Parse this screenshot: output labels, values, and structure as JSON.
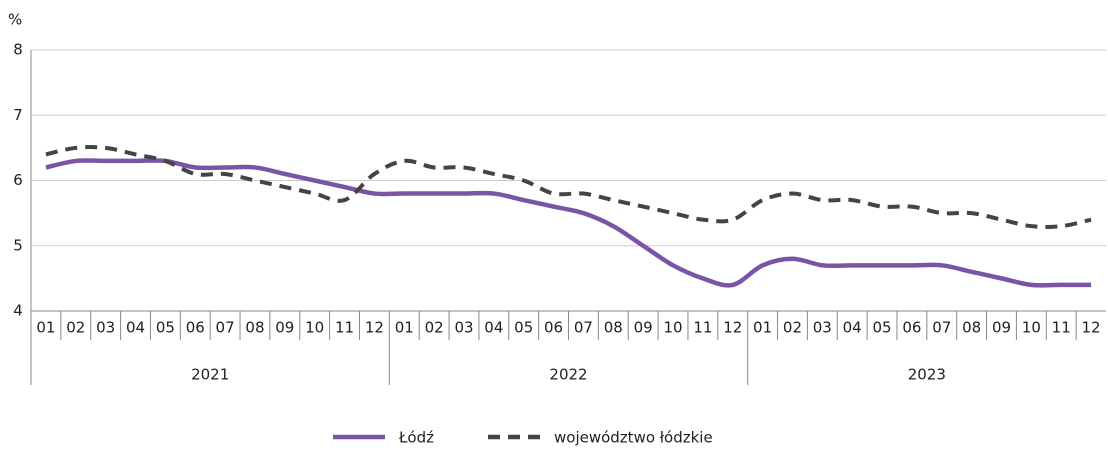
{
  "chart_data": {
    "type": "line",
    "ylabel": "%",
    "categories": [
      "01",
      "02",
      "03",
      "04",
      "05",
      "06",
      "07",
      "08",
      "09",
      "10",
      "11",
      "12",
      "01",
      "02",
      "03",
      "04",
      "05",
      "06",
      "07",
      "08",
      "09",
      "10",
      "11",
      "12",
      "01",
      "02",
      "03",
      "04",
      "05",
      "06",
      "07",
      "08",
      "09",
      "10",
      "11",
      "12"
    ],
    "groups": [
      "2021",
      "2022",
      "2023"
    ],
    "series": [
      {
        "name": "Łódź",
        "color": "#7b55a5",
        "dash": false,
        "values": [
          6.2,
          6.3,
          6.3,
          6.3,
          6.3,
          6.2,
          6.2,
          6.2,
          6.1,
          6.0,
          5.9,
          5.8,
          5.8,
          5.8,
          5.8,
          5.8,
          5.7,
          5.6,
          5.5,
          5.3,
          5.0,
          4.7,
          4.5,
          4.4,
          4.7,
          4.8,
          4.7,
          4.7,
          4.7,
          4.7,
          4.7,
          4.6,
          4.5,
          4.4,
          4.4,
          4.4
        ]
      },
      {
        "name": "województwo łódzkie",
        "color": "#444444",
        "dash": true,
        "values": [
          6.4,
          6.5,
          6.5,
          6.4,
          6.3,
          6.1,
          6.1,
          6.0,
          5.9,
          5.8,
          5.7,
          6.1,
          6.3,
          6.2,
          6.2,
          6.1,
          6.0,
          5.8,
          5.8,
          5.7,
          5.6,
          5.5,
          5.4,
          5.4,
          5.7,
          5.8,
          5.7,
          5.7,
          5.6,
          5.6,
          5.5,
          5.5,
          5.4,
          5.3,
          5.3,
          5.4
        ]
      }
    ],
    "ylim": [
      4,
      8
    ],
    "yticks": [
      4,
      5,
      6,
      7,
      8
    ],
    "grid": true,
    "legend": "bottom"
  }
}
